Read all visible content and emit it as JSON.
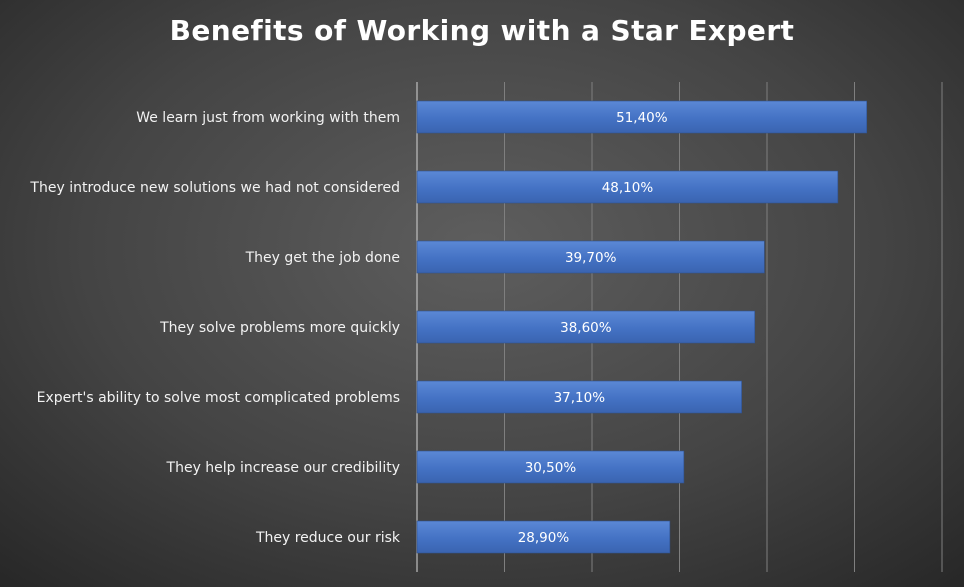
{
  "chart_data": {
    "type": "bar",
    "orientation": "horizontal",
    "title": "Benefits of Working with a Star Expert",
    "categories": [
      "We learn just from working with them",
      "They introduce new solutions we had not considered",
      "They get the job done",
      "They solve problems more quickly",
      "Expert's ability to solve most complicated problems",
      "They help increase our credibility",
      "They reduce our risk"
    ],
    "values": [
      51.4,
      48.1,
      39.7,
      38.6,
      37.1,
      30.5,
      28.9
    ],
    "value_labels": [
      "51,40%",
      "48,10%",
      "39,70%",
      "38,60%",
      "37,10%",
      "30,50%",
      "28,90%"
    ],
    "xlim": [
      0,
      60
    ],
    "grid": true,
    "bar_color": "#4472c4"
  }
}
